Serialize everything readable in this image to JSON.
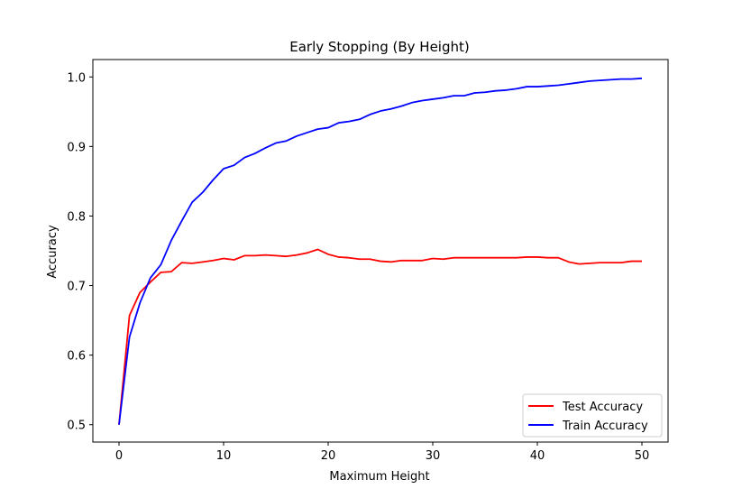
{
  "chart_data": {
    "type": "line",
    "title": "Early Stopping (By Height)",
    "xlabel": "Maximum Height",
    "ylabel": "Accuracy",
    "xlim": [
      -2.5,
      52.5
    ],
    "ylim": [
      0.475,
      1.025
    ],
    "xticks": [
      0,
      10,
      20,
      30,
      40,
      50
    ],
    "yticks": [
      0.5,
      0.6,
      0.7,
      0.8,
      0.9,
      1.0
    ],
    "xtick_labels": [
      "0",
      "10",
      "20",
      "30",
      "40",
      "50"
    ],
    "ytick_labels": [
      "0.5",
      "0.6",
      "0.7",
      "0.8",
      "0.9",
      "1.0"
    ],
    "grid": false,
    "legend_position": "lower right",
    "x": [
      0,
      1,
      2,
      3,
      4,
      5,
      6,
      7,
      8,
      9,
      10,
      11,
      12,
      13,
      14,
      15,
      16,
      17,
      18,
      19,
      20,
      21,
      22,
      23,
      24,
      25,
      26,
      27,
      28,
      29,
      30,
      31,
      32,
      33,
      34,
      35,
      36,
      37,
      38,
      39,
      40,
      41,
      42,
      43,
      44,
      45,
      46,
      47,
      48,
      49,
      50
    ],
    "series": [
      {
        "name": "Test Accuracy",
        "color": "#ff0000",
        "values": [
          0.5,
          0.657,
          0.69,
          0.705,
          0.719,
          0.72,
          0.733,
          0.732,
          0.734,
          0.736,
          0.739,
          0.737,
          0.743,
          0.743,
          0.744,
          0.743,
          0.742,
          0.744,
          0.747,
          0.752,
          0.745,
          0.741,
          0.74,
          0.738,
          0.738,
          0.735,
          0.734,
          0.736,
          0.736,
          0.736,
          0.739,
          0.738,
          0.74,
          0.74,
          0.74,
          0.74,
          0.74,
          0.74,
          0.74,
          0.741,
          0.741,
          0.74,
          0.74,
          0.734,
          0.731,
          0.732,
          0.733,
          0.733,
          0.733,
          0.735,
          0.735
        ]
      },
      {
        "name": "Train Accuracy",
        "color": "#0000ff",
        "values": [
          0.5,
          0.626,
          0.675,
          0.711,
          0.73,
          0.765,
          0.793,
          0.82,
          0.834,
          0.852,
          0.868,
          0.873,
          0.884,
          0.89,
          0.898,
          0.905,
          0.908,
          0.915,
          0.92,
          0.925,
          0.927,
          0.934,
          0.936,
          0.939,
          0.946,
          0.951,
          0.954,
          0.958,
          0.963,
          0.966,
          0.968,
          0.97,
          0.973,
          0.973,
          0.977,
          0.978,
          0.98,
          0.981,
          0.983,
          0.986,
          0.986,
          0.987,
          0.988,
          0.99,
          0.992,
          0.994,
          0.995,
          0.996,
          0.997,
          0.997,
          0.998
        ]
      }
    ]
  }
}
